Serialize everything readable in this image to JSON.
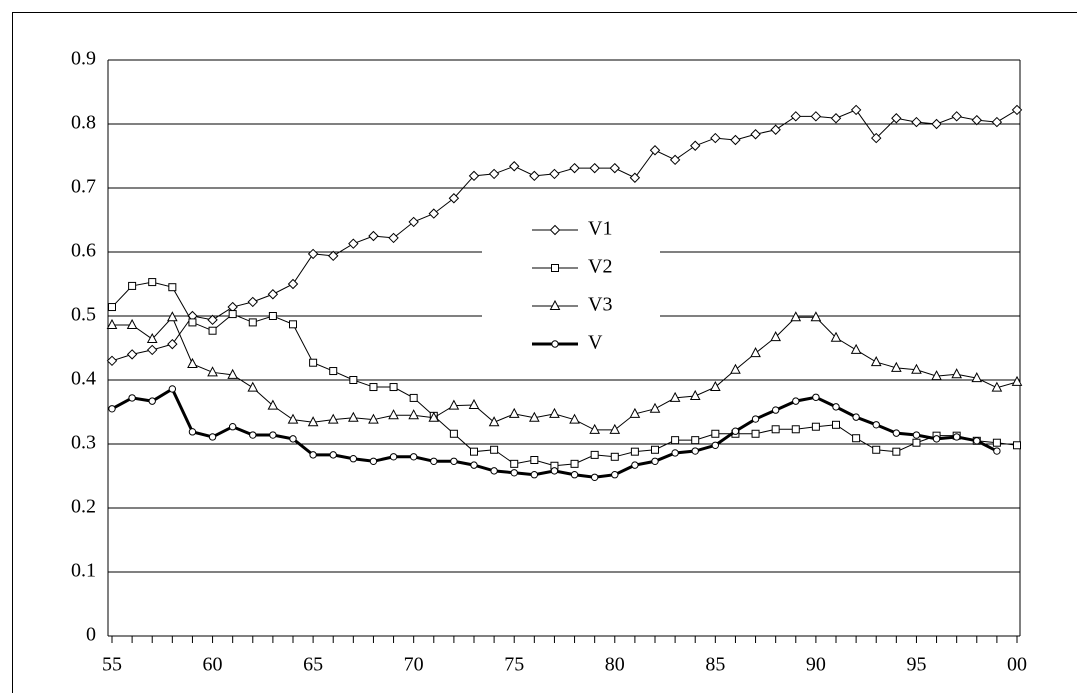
{
  "chart_data": {
    "type": "line",
    "categories": [
      "55",
      null,
      null,
      null,
      null,
      "60",
      null,
      null,
      null,
      null,
      "65",
      null,
      null,
      null,
      null,
      "70",
      null,
      null,
      null,
      null,
      "75",
      null,
      null,
      null,
      null,
      "80",
      null,
      null,
      null,
      null,
      "85",
      null,
      null,
      null,
      null,
      "90",
      null,
      null,
      null,
      null,
      "95",
      null,
      null,
      null,
      null,
      "00"
    ],
    "ylim": [
      0,
      0.9
    ],
    "yticks": [
      0,
      0.1,
      0.2,
      0.3,
      0.4,
      0.5,
      0.6,
      0.7,
      0.8,
      0.9
    ],
    "grid": true,
    "series": [
      {
        "name": "V1",
        "color": "#000000",
        "marker": "diamond",
        "width": 1,
        "values": [
          0.43,
          0.44,
          0.447,
          0.456,
          0.5,
          0.494,
          0.514,
          0.522,
          0.534,
          0.55,
          0.597,
          0.594,
          0.613,
          0.625,
          0.622,
          0.647,
          0.66,
          0.684,
          0.719,
          0.722,
          0.734,
          0.719,
          0.722,
          0.731,
          0.731,
          0.731,
          0.716,
          0.759,
          0.744,
          0.766,
          0.778,
          0.775,
          0.784,
          0.791,
          0.812,
          0.812,
          0.809,
          0.822,
          0.778,
          0.809,
          0.803,
          0.8,
          0.812,
          0.806,
          0.803,
          0.822
        ]
      },
      {
        "name": "V2",
        "color": "#000000",
        "marker": "square",
        "width": 1,
        "values": [
          0.514,
          0.547,
          0.553,
          0.545,
          0.49,
          0.477,
          0.503,
          0.49,
          0.5,
          0.487,
          0.427,
          0.414,
          0.4,
          0.389,
          0.389,
          0.372,
          0.344,
          0.316,
          0.288,
          0.291,
          0.269,
          0.275,
          0.266,
          0.269,
          0.283,
          0.28,
          0.288,
          0.291,
          0.306,
          0.306,
          0.316,
          0.316,
          0.316,
          0.323,
          0.323,
          0.327,
          0.33,
          0.309,
          0.291,
          0.288,
          0.302,
          0.313,
          0.313,
          0.305,
          0.302,
          0.298
        ]
      },
      {
        "name": "V3",
        "color": "#000000",
        "marker": "triangle",
        "width": 1,
        "values": [
          0.486,
          0.486,
          0.464,
          0.498,
          0.425,
          0.412,
          0.408,
          0.388,
          0.36,
          0.338,
          0.334,
          0.338,
          0.341,
          0.338,
          0.345,
          0.345,
          0.341,
          0.36,
          0.361,
          0.334,
          0.347,
          0.341,
          0.347,
          0.338,
          0.322,
          0.322,
          0.347,
          0.355,
          0.372,
          0.375,
          0.389,
          0.416,
          0.442,
          0.467,
          0.498,
          0.498,
          0.466,
          0.447,
          0.428,
          0.419,
          0.416,
          0.406,
          0.409,
          0.403,
          0.388,
          0.397
        ]
      },
      {
        "name": "V",
        "color": "#000000",
        "marker": "circle",
        "width": 3,
        "values": [
          0.355,
          0.372,
          0.367,
          0.386,
          0.319,
          0.311,
          0.327,
          0.314,
          0.314,
          0.308,
          0.283,
          0.283,
          0.277,
          0.273,
          0.28,
          0.28,
          0.273,
          0.273,
          0.267,
          0.258,
          0.255,
          0.252,
          0.258,
          0.252,
          0.248,
          0.252,
          0.267,
          0.273,
          0.286,
          0.289,
          0.298,
          0.32,
          0.339,
          0.353,
          0.367,
          0.373,
          0.358,
          0.342,
          0.33,
          0.317,
          0.314,
          0.308,
          0.311,
          0.305,
          0.289,
          null
        ]
      }
    ]
  }
}
